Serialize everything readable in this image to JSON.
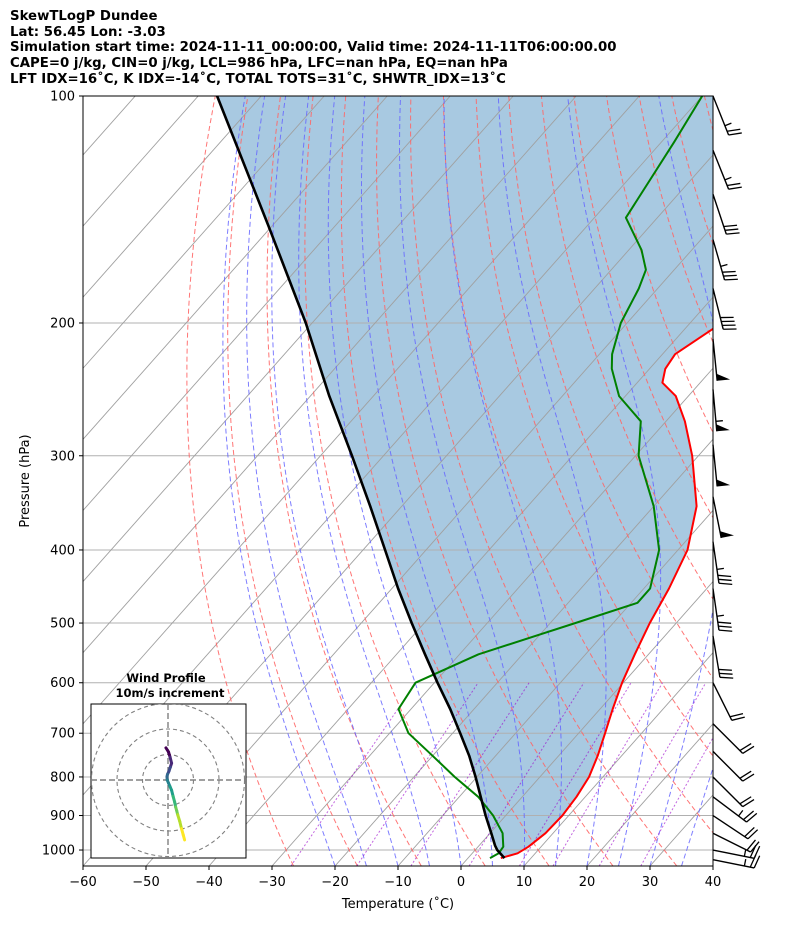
{
  "header": {
    "line1": "SkewTLogP Dundee",
    "line2": "Lat: 56.45   Lon: -3.03",
    "line3": "Simulation start time: 2024-11-11_00:00:00, Valid time: 2024-11-11T06:00:00.00",
    "line4": "CAPE=0 j/kg, CIN=0 j/kg, LCL=986 hPa, LFC=nan hPa, EQ=nan hPa",
    "line5": "LFT IDX=16˚C, K IDX=-14˚C, TOTAL TOTS=31˚C, SHWTR_IDX=13˚C"
  },
  "chart_data": [
    {
      "type": "line",
      "subtype": "skewT-logP",
      "xlabel": "Temperature (˚C)",
      "ylabel": "Pressure (hPa)",
      "xlim": [
        -60,
        40
      ],
      "ylim": [
        1050,
        100
      ],
      "y_scale": "log",
      "x_ticks": [
        "−60",
        "−50",
        "−40",
        "−30",
        "−20",
        "−10",
        "0",
        "10",
        "20",
        "30",
        "40"
      ],
      "y_ticks": [
        "100",
        "200",
        "300",
        "400",
        "500",
        "600",
        "700",
        "800",
        "900",
        "1000"
      ],
      "grid": true,
      "colors": {
        "temperature": "#ff0000",
        "dewpoint": "#008000",
        "parcel": "#000000",
        "shade": "#a3c6df",
        "dry_adiabats": "#ff6666",
        "moist_adiabats": "#6666ff",
        "mixing_ratio": "#9900cc",
        "isotherms": "#a0a0a0"
      },
      "series": [
        {
          "key": "temperature",
          "color": "#ff0000",
          "points": [
            [
              1025,
              5.2
            ],
            [
              1010,
              7.2
            ],
            [
              990,
              8.0
            ],
            [
              950,
              8.8
            ],
            [
              900,
              9.0
            ],
            [
              850,
              8.6
            ],
            [
              800,
              7.8
            ],
            [
              750,
              6.2
            ],
            [
              700,
              4.2
            ],
            [
              650,
              2.0
            ],
            [
              600,
              -0.2
            ],
            [
              550,
              -2.2
            ],
            [
              500,
              -4.2
            ],
            [
              450,
              -6.0
            ],
            [
              400,
              -8.5
            ],
            [
              350,
              -13.2
            ],
            [
              300,
              -21.0
            ],
            [
              270,
              -27.0
            ],
            [
              250,
              -32.0
            ],
            [
              240,
              -36.0
            ],
            [
              230,
              -37.5
            ],
            [
              220,
              -38.0
            ],
            [
              200,
              -35.0
            ],
            [
              180,
              -32.5
            ],
            [
              160,
              -31.0
            ],
            [
              150,
              -31.0
            ],
            [
              130,
              -31.0
            ],
            [
              115,
              -32.2
            ],
            [
              100,
              -33.5
            ]
          ]
        },
        {
          "key": "dewpoint",
          "color": "#008000",
          "points": [
            [
              1025,
              3.5
            ],
            [
              1010,
              4.2
            ],
            [
              990,
              4.0
            ],
            [
              950,
              2.0
            ],
            [
              900,
              -2.0
            ],
            [
              850,
              -7.0
            ],
            [
              800,
              -13.5
            ],
            [
              750,
              -20.0
            ],
            [
              700,
              -27.0
            ],
            [
              650,
              -32.0
            ],
            [
              600,
              -33.0
            ],
            [
              550,
              -27.0
            ],
            [
              500,
              -16.0
            ],
            [
              470,
              -9.0
            ],
            [
              450,
              -9.0
            ],
            [
              400,
              -13.0
            ],
            [
              350,
              -20.0
            ],
            [
              300,
              -29.5
            ],
            [
              270,
              -34.0
            ],
            [
              250,
              -41.0
            ],
            [
              230,
              -46.0
            ],
            [
              220,
              -48.0
            ],
            [
              200,
              -51.0
            ],
            [
              180,
              -53.0
            ],
            [
              170,
              -54.5
            ],
            [
              160,
              -58.0
            ],
            [
              145,
              -65.0
            ],
            [
              115,
              -68.0
            ],
            [
              100,
              -70.0
            ]
          ]
        },
        {
          "key": "parcel",
          "color": "#000000",
          "points": [
            [
              1025,
              5.8
            ],
            [
              1000,
              3.5
            ],
            [
              986,
              2.5
            ],
            [
              950,
              0.2
            ],
            [
              900,
              -3.2
            ],
            [
              850,
              -6.6
            ],
            [
              800,
              -10.2
            ],
            [
              750,
              -14.2
            ],
            [
              700,
              -18.8
            ],
            [
              650,
              -23.8
            ],
            [
              600,
              -29.5
            ],
            [
              550,
              -35.5
            ],
            [
              500,
              -42.0
            ],
            [
              450,
              -49.0
            ],
            [
              400,
              -56.5
            ],
            [
              350,
              -65.0
            ],
            [
              300,
              -75.0
            ],
            [
              250,
              -87.0
            ],
            [
              200,
              -101.0
            ],
            [
              150,
              -120.0
            ],
            [
              100,
              -147.0
            ]
          ]
        }
      ]
    },
    {
      "type": "scatter",
      "subtype": "hodograph",
      "title": "Wind Profile",
      "subtitle": "10m/s increment",
      "rings_ms": [
        10,
        20,
        30
      ],
      "color_scale": "viridis",
      "points": [
        [
          -0.8,
          12.6
        ],
        [
          0.2,
          11.0
        ],
        [
          0.8,
          9.0
        ],
        [
          1.4,
          6.6
        ],
        [
          0.9,
          5.0
        ],
        [
          0.4,
          3.5
        ],
        [
          -0.2,
          2.2
        ],
        [
          -0.4,
          1.3
        ],
        [
          -0.3,
          0.0
        ],
        [
          0.2,
          -1.2
        ],
        [
          0.8,
          -2.6
        ],
        [
          1.4,
          -4.0
        ],
        [
          2.0,
          -6.4
        ],
        [
          2.6,
          -8.6
        ],
        [
          3.0,
          -10.6
        ],
        [
          3.4,
          -12.0
        ],
        [
          3.8,
          -13.6
        ],
        [
          4.6,
          -16.2
        ],
        [
          5.3,
          -19.1
        ],
        [
          6.0,
          -21.6
        ],
        [
          6.5,
          -23.5
        ]
      ]
    }
  ],
  "wind_barbs": [
    {
      "p": 100,
      "u": -10,
      "v": 25
    },
    {
      "p": 118,
      "u": -10,
      "v": 25
    },
    {
      "p": 135,
      "u": -10,
      "v": 30
    },
    {
      "p": 155,
      "u": -10,
      "v": 35
    },
    {
      "p": 180,
      "u": -10,
      "v": 40
    },
    {
      "p": 210,
      "u": -5,
      "v": 50
    },
    {
      "p": 245,
      "u": -5,
      "v": 55
    },
    {
      "p": 290,
      "u": -5,
      "v": 50
    },
    {
      "p": 340,
      "u": -10,
      "v": 50
    },
    {
      "p": 390,
      "u": -5,
      "v": 35
    },
    {
      "p": 450,
      "u": -5,
      "v": 35
    },
    {
      "p": 520,
      "u": -5,
      "v": 30
    },
    {
      "p": 600,
      "u": -10,
      "v": 20
    },
    {
      "p": 680,
      "u": -15,
      "v": 15
    },
    {
      "p": 740,
      "u": -15,
      "v": 15
    },
    {
      "p": 800,
      "u": -15,
      "v": 15
    },
    {
      "p": 850,
      "u": -20,
      "v": 15
    },
    {
      "p": 900,
      "u": -15,
      "v": 10
    },
    {
      "p": 950,
      "u": -20,
      "v": 10
    },
    {
      "p": 1000,
      "u": -25,
      "v": 5
    },
    {
      "p": 1030,
      "u": -25,
      "v": 5
    }
  ]
}
